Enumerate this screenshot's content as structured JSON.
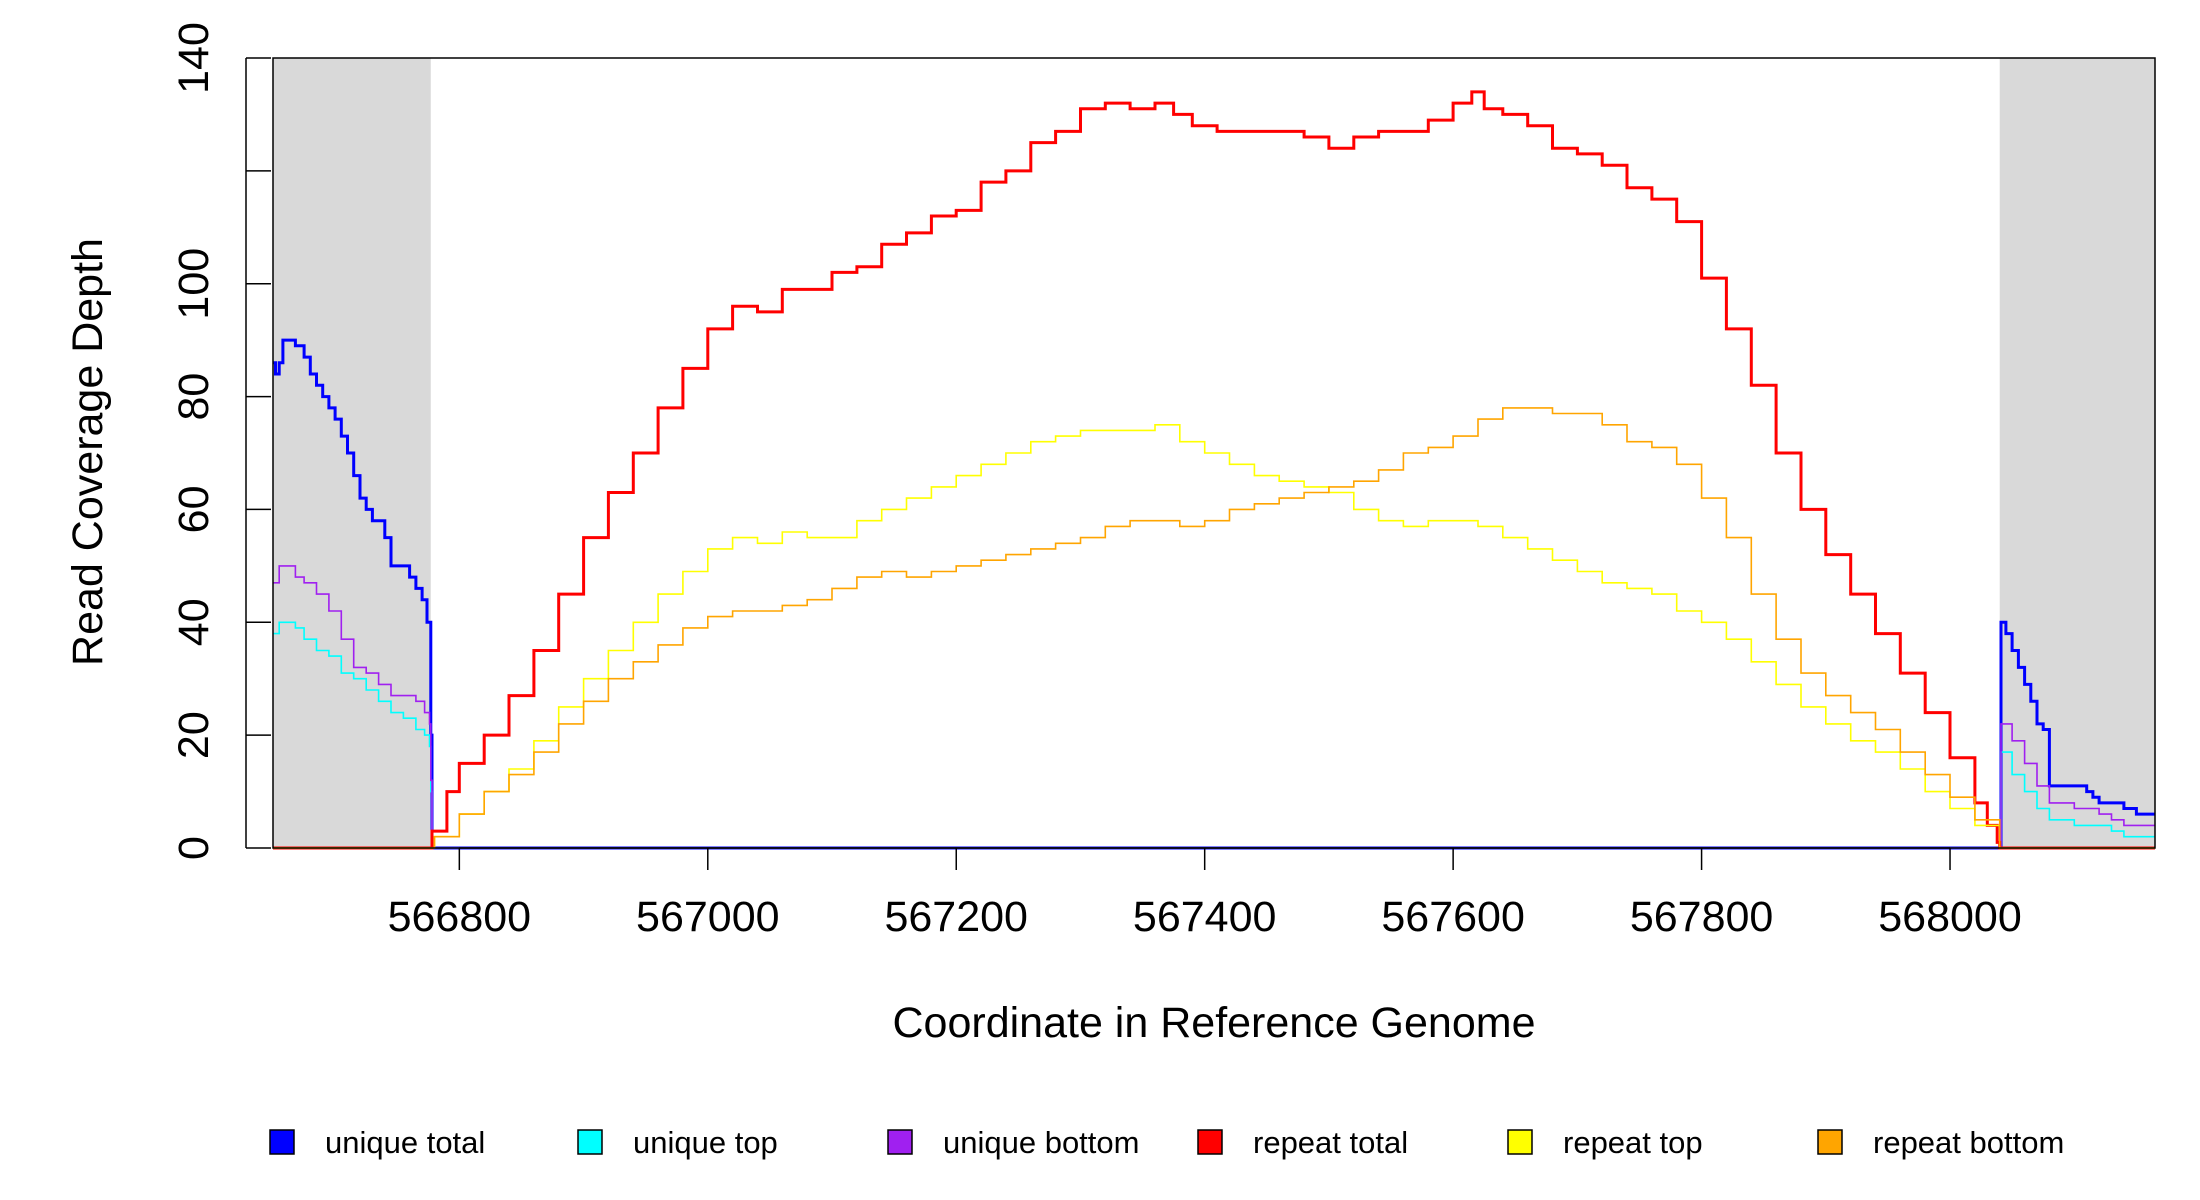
{
  "chart_data": {
    "type": "line",
    "title": "",
    "xlabel": "Coordinate in Reference Genome",
    "ylabel": "Read Coverage Depth",
    "xlim": [
      566650,
      568165
    ],
    "ylim": [
      0,
      140
    ],
    "x_ticks": [
      566800,
      567000,
      567200,
      567400,
      567600,
      567800,
      568000
    ],
    "y_ticks": [
      0,
      20,
      40,
      60,
      80,
      100,
      120,
      140
    ],
    "y_tick_labels": [
      "0",
      "20",
      "40",
      "60",
      "80",
      "100",
      "",
      "140"
    ],
    "grid": false,
    "shaded_regions": [
      {
        "x0": 566650,
        "x1": 566777,
        "color": "#d9d9d9"
      },
      {
        "x0": 568040,
        "x1": 568165,
        "color": "#d9d9d9"
      }
    ],
    "legend_position": "bottom",
    "series": [
      {
        "name": "unique total",
        "color": "#0000ff",
        "width": 3,
        "x": [
          566650,
          566652,
          566655,
          566658,
          566662,
          566668,
          566675,
          566680,
          566685,
          566690,
          566695,
          566700,
          566705,
          566710,
          566715,
          566720,
          566725,
          566730,
          566735,
          566740,
          566745,
          566752,
          566760,
          566765,
          566770,
          566774,
          566776,
          566777,
          566778,
          568039,
          568040,
          568041,
          568045,
          568050,
          568055,
          568060,
          568065,
          568070,
          568075,
          568080,
          568090,
          568100,
          568105,
          568110,
          568115,
          568120,
          568140,
          568150,
          568155,
          568165
        ],
        "y": [
          86,
          84,
          86,
          90,
          90,
          89,
          87,
          84,
          82,
          80,
          78,
          76,
          73,
          70,
          66,
          62,
          60,
          58,
          58,
          55,
          50,
          50,
          48,
          46,
          44,
          40,
          40,
          20,
          0,
          0,
          0,
          40,
          38,
          35,
          32,
          29,
          26,
          22,
          21,
          11,
          11,
          11,
          11,
          10,
          9,
          8,
          7,
          6,
          6,
          6
        ]
      },
      {
        "name": "unique top",
        "color": "#00ffff",
        "width": 1.6,
        "x": [
          566650,
          566655,
          566660,
          566668,
          566675,
          566685,
          566695,
          566705,
          566715,
          566725,
          566735,
          566745,
          566755,
          566765,
          566772,
          566776,
          566777,
          566778,
          568039,
          568040,
          568041,
          568050,
          568060,
          568070,
          568080,
          568100,
          568120,
          568130,
          568140,
          568165
        ],
        "y": [
          38,
          40,
          40,
          39,
          37,
          35,
          34,
          31,
          30,
          28,
          26,
          24,
          23,
          21,
          20,
          18,
          10,
          0,
          0,
          0,
          17,
          13,
          10,
          7,
          5,
          4,
          4,
          3,
          2,
          2
        ]
      },
      {
        "name": "unique bottom",
        "color": "#a020f0",
        "width": 1.6,
        "x": [
          566650,
          566655,
          566660,
          566668,
          566675,
          566685,
          566695,
          566705,
          566715,
          566725,
          566735,
          566745,
          566755,
          566765,
          566772,
          566776,
          566777,
          566778,
          568039,
          568040,
          568041,
          568050,
          568060,
          568070,
          568080,
          568100,
          568120,
          568130,
          568140,
          568165
        ],
        "y": [
          47,
          50,
          50,
          48,
          47,
          45,
          42,
          37,
          32,
          31,
          29,
          27,
          27,
          26,
          24,
          22,
          12,
          0,
          0,
          0,
          22,
          19,
          15,
          11,
          8,
          7,
          6,
          5,
          4,
          4
        ]
      },
      {
        "name": "repeat total",
        "color": "#ff0000",
        "width": 3,
        "x": [
          566650,
          566776,
          566778,
          566790,
          566800,
          566820,
          566840,
          566860,
          566880,
          566900,
          566920,
          566940,
          566960,
          566980,
          567000,
          567020,
          567040,
          567060,
          567080,
          567100,
          567120,
          567140,
          567160,
          567180,
          567200,
          567220,
          567240,
          567260,
          567280,
          567300,
          567320,
          567340,
          567360,
          567375,
          567390,
          567410,
          567440,
          567460,
          567480,
          567500,
          567520,
          567540,
          567560,
          567580,
          567600,
          567615,
          567625,
          567640,
          567660,
          567680,
          567700,
          567720,
          567740,
          567760,
          567780,
          567800,
          567820,
          567840,
          567860,
          567880,
          567900,
          567920,
          567940,
          567960,
          567980,
          568000,
          568020,
          568030,
          568038,
          568040,
          568165
        ],
        "y": [
          0,
          0,
          3,
          10,
          15,
          20,
          27,
          35,
          45,
          55,
          63,
          70,
          78,
          85,
          92,
          96,
          95,
          99,
          99,
          102,
          103,
          107,
          109,
          112,
          113,
          118,
          120,
          125,
          127,
          131,
          132,
          131,
          132,
          130,
          128,
          127,
          127,
          127,
          126,
          124,
          126,
          127,
          127,
          129,
          132,
          134,
          131,
          130,
          128,
          124,
          123,
          121,
          117,
          115,
          111,
          101,
          92,
          82,
          70,
          60,
          52,
          45,
          38,
          31,
          24,
          16,
          8,
          4,
          1,
          0,
          0
        ]
      },
      {
        "name": "repeat top",
        "color": "#ffff00",
        "width": 1.6,
        "x": [
          566650,
          566776,
          566780,
          566800,
          566820,
          566840,
          566860,
          566880,
          566900,
          566920,
          566940,
          566960,
          566980,
          567000,
          567020,
          567040,
          567060,
          567080,
          567100,
          567120,
          567140,
          567160,
          567180,
          567200,
          567220,
          567240,
          567260,
          567280,
          567300,
          567320,
          567340,
          567360,
          567380,
          567400,
          567420,
          567440,
          567460,
          567480,
          567500,
          567520,
          567540,
          567560,
          567580,
          567600,
          567620,
          567640,
          567660,
          567680,
          567700,
          567720,
          567740,
          567760,
          567780,
          567800,
          567820,
          567840,
          567860,
          567880,
          567900,
          567920,
          567940,
          567960,
          567980,
          568000,
          568020,
          568040,
          568165
        ],
        "y": [
          0,
          0,
          2,
          6,
          10,
          14,
          19,
          25,
          30,
          35,
          40,
          45,
          49,
          53,
          55,
          54,
          56,
          55,
          55,
          58,
          60,
          62,
          64,
          66,
          68,
          70,
          72,
          73,
          74,
          74,
          74,
          75,
          72,
          70,
          68,
          66,
          65,
          64,
          63,
          60,
          58,
          57,
          58,
          58,
          57,
          55,
          53,
          51,
          49,
          47,
          46,
          45,
          42,
          40,
          37,
          33,
          29,
          25,
          22,
          19,
          17,
          14,
          10,
          7,
          4,
          0,
          0
        ]
      },
      {
        "name": "repeat bottom",
        "color": "#ffa500",
        "width": 1.6,
        "x": [
          566650,
          566776,
          566780,
          566800,
          566820,
          566840,
          566860,
          566880,
          566900,
          566920,
          566940,
          566960,
          566980,
          567000,
          567020,
          567040,
          567060,
          567080,
          567100,
          567120,
          567140,
          567160,
          567180,
          567200,
          567220,
          567240,
          567260,
          567280,
          567300,
          567320,
          567340,
          567360,
          567380,
          567400,
          567420,
          567440,
          567460,
          567480,
          567500,
          567520,
          567540,
          567560,
          567580,
          567600,
          567620,
          567640,
          567660,
          567680,
          567700,
          567720,
          567740,
          567760,
          567780,
          567800,
          567820,
          567840,
          567860,
          567880,
          567900,
          567920,
          567940,
          567960,
          567980,
          568000,
          568020,
          568040,
          568165
        ],
        "y": [
          0,
          0,
          2,
          6,
          10,
          13,
          17,
          22,
          26,
          30,
          33,
          36,
          39,
          41,
          42,
          42,
          43,
          44,
          46,
          48,
          49,
          48,
          49,
          50,
          51,
          52,
          53,
          54,
          55,
          57,
          58,
          58,
          57,
          58,
          60,
          61,
          62,
          63,
          64,
          65,
          67,
          70,
          71,
          73,
          76,
          78,
          78,
          77,
          77,
          75,
          72,
          71,
          68,
          62,
          55,
          45,
          37,
          31,
          27,
          24,
          21,
          17,
          13,
          9,
          5,
          0,
          0
        ]
      }
    ]
  }
}
